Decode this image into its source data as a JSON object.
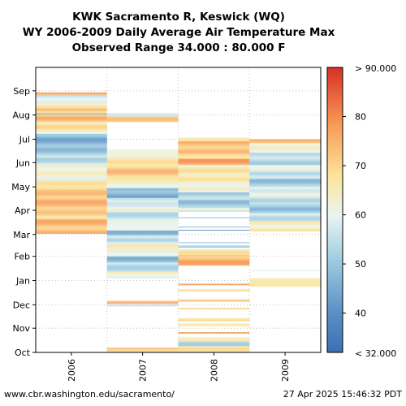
{
  "chart_data": {
    "type": "heatmap",
    "title_lines": [
      "KWK Sacramento R, Keswick (WQ)",
      "WY 2006-2009 Daily Average Air Temperature Max",
      "Observed Range 34.000 : 80.000 F"
    ],
    "x_categories": [
      "2006",
      "2007",
      "2008",
      "2009"
    ],
    "y_month_labels": [
      "Oct",
      "Nov",
      "Dec",
      "Jan",
      "Feb",
      "Mar",
      "Apr",
      "May",
      "Jun",
      "Jul",
      "Aug",
      "Sep"
    ],
    "colorbar": {
      "min": 32,
      "max": 90,
      "ticks": [
        40,
        50,
        60,
        70,
        80
      ],
      "top_label": "> 90.000",
      "bottom_label": "< 32.000"
    },
    "colors": {
      "low": "#3a6fb5",
      "mid": "#f5f5e0",
      "high": "#d73027"
    },
    "series": [
      {
        "year": "2006",
        "bands": [
          [
            152,
            171,
            74
          ],
          [
            171,
            182,
            70
          ],
          [
            182,
            200,
            74
          ],
          [
            200,
            213,
            72
          ],
          [
            213,
            220,
            66
          ],
          [
            220,
            232,
            62
          ],
          [
            232,
            240,
            64
          ],
          [
            240,
            252,
            55
          ],
          [
            252,
            262,
            50
          ],
          [
            262,
            280,
            46
          ],
          [
            280,
            283,
            62
          ],
          [
            283,
            295,
            67
          ],
          [
            295,
            300,
            74
          ],
          [
            300,
            312,
            73
          ],
          [
            312,
            320,
            67
          ],
          [
            320,
            330,
            56
          ],
          [
            305,
            306,
            40
          ],
          [
            330,
            333,
            75
          ]
        ]
      },
      {
        "year": "2007",
        "bands": [
          [
            0,
            1,
            60
          ],
          [
            1,
            3,
            73
          ],
          [
            3,
            6,
            70
          ],
          [
            59,
            61,
            55
          ],
          [
            62,
            66,
            73
          ],
          [
            95,
            103,
            62
          ],
          [
            103,
            115,
            54
          ],
          [
            115,
            123,
            48
          ],
          [
            123,
            130,
            57
          ],
          [
            130,
            138,
            66
          ],
          [
            138,
            143,
            58
          ],
          [
            143,
            150,
            53
          ],
          [
            150,
            156,
            48
          ],
          [
            156,
            160,
            56
          ],
          [
            160,
            168,
            63
          ],
          [
            168,
            180,
            55
          ],
          [
            180,
            190,
            60
          ],
          [
            190,
            198,
            54
          ],
          [
            198,
            210,
            45
          ],
          [
            210,
            222,
            62
          ],
          [
            222,
            240,
            72
          ],
          [
            240,
            252,
            66
          ],
          [
            252,
            260,
            59
          ],
          [
            295,
            302,
            70
          ],
          [
            302,
            307,
            60
          ]
        ]
      },
      {
        "year": "2008",
        "bands": [
          [
            0,
            8,
            66
          ],
          [
            8,
            14,
            54
          ],
          [
            14,
            20,
            63
          ],
          [
            24,
            26,
            74
          ],
          [
            33,
            37,
            67
          ],
          [
            40,
            44,
            70
          ],
          [
            55,
            57,
            73
          ],
          [
            65,
            68,
            72
          ],
          [
            78,
            81,
            69
          ],
          [
            86,
            88,
            74
          ],
          [
            111,
            125,
            75
          ],
          [
            125,
            132,
            66
          ],
          [
            134,
            137,
            52
          ],
          [
            140,
            141,
            48
          ],
          [
            156,
            157,
            45
          ],
          [
            160,
            161,
            44
          ],
          [
            172,
            173,
            45
          ],
          [
            180,
            185,
            60
          ],
          [
            185,
            195,
            50
          ],
          [
            195,
            205,
            52
          ],
          [
            205,
            215,
            60
          ],
          [
            215,
            223,
            65
          ],
          [
            223,
            232,
            68
          ],
          [
            232,
            240,
            66
          ],
          [
            240,
            248,
            76
          ],
          [
            248,
            256,
            71
          ],
          [
            256,
            270,
            74
          ],
          [
            270,
            275,
            69
          ]
        ]
      },
      {
        "year": "2009",
        "bands": [
          [
            84,
            90,
            64
          ],
          [
            90,
            95,
            69
          ],
          [
            104,
            105,
            62
          ],
          [
            155,
            160,
            66
          ],
          [
            160,
            168,
            63
          ],
          [
            168,
            178,
            56
          ],
          [
            178,
            185,
            50
          ],
          [
            185,
            190,
            48
          ],
          [
            190,
            200,
            56
          ],
          [
            200,
            212,
            60
          ],
          [
            212,
            222,
            50
          ],
          [
            222,
            230,
            53
          ],
          [
            230,
            240,
            58
          ],
          [
            240,
            255,
            53
          ],
          [
            255,
            262,
            60
          ],
          [
            262,
            268,
            65
          ],
          [
            268,
            273,
            72
          ]
        ]
      }
    ]
  },
  "footer": {
    "left": "www.cbr.washington.edu/sacramento/",
    "right": "27 Apr 2025 15:46:32 PDT"
  }
}
